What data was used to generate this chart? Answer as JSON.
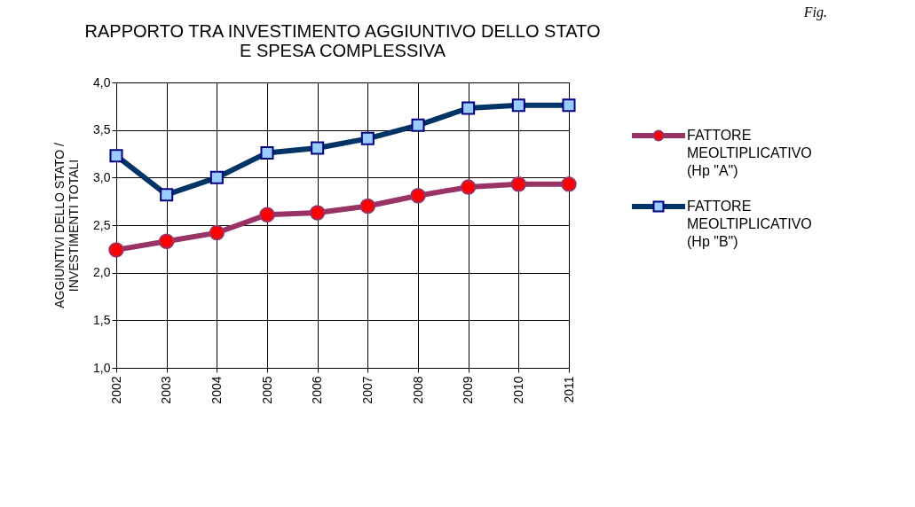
{
  "chart_data": {
    "type": "line",
    "title": "RAPPORTO TRA INVESTIMENTO AGGIUNTIVO DELLO STATO\nE SPESA COMPLESSIVA",
    "ylabel": "AGGIUNTIVI DELLO STATO /\nINVESTIMENTI TOTALI",
    "categories": [
      "2002",
      "2003",
      "2004",
      "2005",
      "2006",
      "2007",
      "2008",
      "2009",
      "2010",
      "2011"
    ],
    "series": [
      {
        "name": "FATTORE MEOLTIPLICATIVO (Hp \"A\")",
        "color": "#993366",
        "marker": "circle",
        "values": [
          2.24,
          2.33,
          2.42,
          2.61,
          2.63,
          2.7,
          2.81,
          2.9,
          2.93,
          2.93
        ]
      },
      {
        "name": "FATTORE MEOLTIPLICATIVO (Hp \"B\")",
        "color": "#003366",
        "marker": "square",
        "values": [
          3.23,
          2.82,
          3.0,
          3.26,
          3.31,
          3.41,
          3.55,
          3.73,
          3.76,
          3.76
        ]
      }
    ],
    "ylim": [
      1.0,
      4.0
    ],
    "yticks": [
      {
        "value": 1.0,
        "label": "1,0"
      },
      {
        "value": 1.5,
        "label": "1,5"
      },
      {
        "value": 2.0,
        "label": "2,0"
      },
      {
        "value": 2.5,
        "label": "2,5"
      },
      {
        "value": 3.0,
        "label": "3,0"
      },
      {
        "value": 3.5,
        "label": "3,5"
      },
      {
        "value": 4.0,
        "label": "4,0"
      }
    ],
    "grid": true,
    "legend": "right",
    "line_style": "solid",
    "annotations": [
      "Fig."
    ]
  }
}
